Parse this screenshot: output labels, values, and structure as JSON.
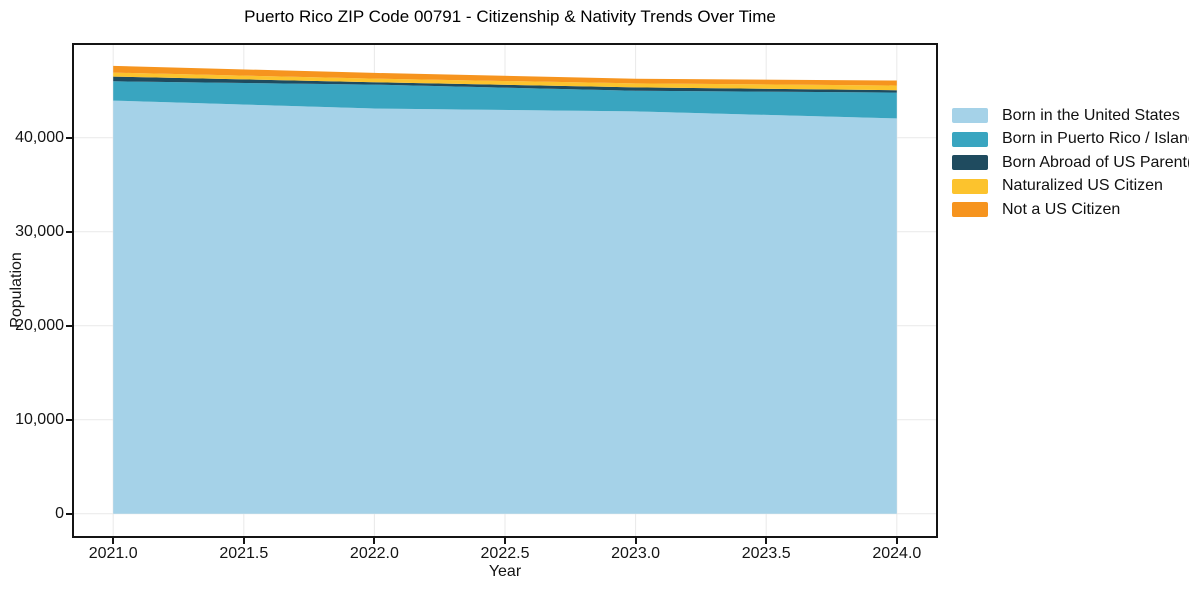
{
  "title": "Puerto Rico ZIP Code 00791 - Citizenship & Nativity Trends Over Time",
  "axes": {
    "x_label": "Year",
    "y_label": "Population",
    "x_tick_labels": [
      "2021.0",
      "2021.5",
      "2022.0",
      "2022.5",
      "2023.0",
      "2023.5",
      "2024.0"
    ],
    "y_tick_labels": [
      "0",
      "10,000",
      "20,000",
      "30,000",
      "40,000"
    ]
  },
  "legend": {
    "position": "right-outside",
    "items": [
      {
        "label": "Born in the United States",
        "color": "#a5d2e8"
      },
      {
        "label": "Born in Puerto Rico / Islands",
        "color": "#39a5c0"
      },
      {
        "label": "Born Abroad of US Parent(s)",
        "color": "#1f4b5f"
      },
      {
        "label": "Naturalized US Citizen",
        "color": "#fcc32d"
      },
      {
        "label": "Not a US Citizen",
        "color": "#f6941e"
      }
    ]
  },
  "chart_data": {
    "type": "area",
    "stacked": true,
    "title": "Puerto Rico ZIP Code 00791 - Citizenship & Nativity Trends Over Time",
    "xlabel": "Year",
    "ylabel": "Population",
    "x": [
      2021,
      2022,
      2023,
      2024
    ],
    "series": [
      {
        "name": "Born in the United States",
        "color": "#a5d2e8",
        "values": [
          43950,
          43100,
          42800,
          42050
        ]
      },
      {
        "name": "Born in Puerto Rico / Islands",
        "color": "#39a5c0",
        "values": [
          2050,
          2550,
          2200,
          2750
        ]
      },
      {
        "name": "Born Abroad of US Parent(s)",
        "color": "#1f4b5f",
        "values": [
          500,
          250,
          350,
          250
        ]
      },
      {
        "name": "Naturalized US Citizen",
        "color": "#fcc32d",
        "values": [
          425,
          390,
          425,
          500
        ]
      },
      {
        "name": "Not a US Citizen",
        "color": "#f6941e",
        "values": [
          710,
          600,
          500,
          530
        ]
      }
    ],
    "stacked_totals": [
      47635,
      46890,
      46275,
      46080
    ],
    "x_tick_values": [
      2021.0,
      2021.5,
      2022.0,
      2022.5,
      2023.0,
      2023.5,
      2024.0
    ],
    "y_tick_values": [
      0,
      10000,
      20000,
      30000,
      40000
    ],
    "xlim": [
      2020.85,
      2024.15
    ],
    "ylim": [
      -2370,
      49860
    ],
    "grid": true,
    "grid_color": "#e9e9e9",
    "background": "#ffffff",
    "legend_position": "right-outside"
  }
}
